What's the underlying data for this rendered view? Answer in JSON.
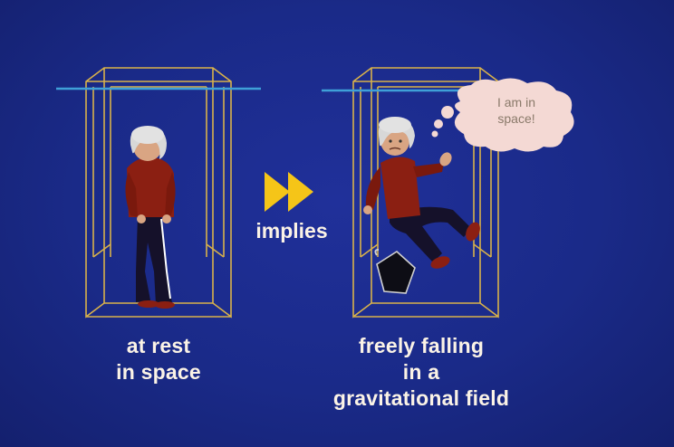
{
  "left_panel": {
    "caption_lines": [
      "at rest",
      "in space"
    ]
  },
  "right_panel": {
    "caption_lines": [
      "freely falling",
      "in a",
      "gravitational field"
    ],
    "thought_bubble_lines": [
      "I am in",
      "space!"
    ]
  },
  "connector": {
    "label": "implies",
    "icon": "fast-forward-arrow-icon"
  },
  "colors": {
    "background": "#1a2a85",
    "elevator_frame": "#d9b24a",
    "ceiling_line": "#3fa0d8",
    "arrow": "#f5c518",
    "shirt": "#8b1f12",
    "pants": "#15112a",
    "hair": "#d8d8d8",
    "skin": "#d9a583",
    "text": "#fbf3e6"
  }
}
